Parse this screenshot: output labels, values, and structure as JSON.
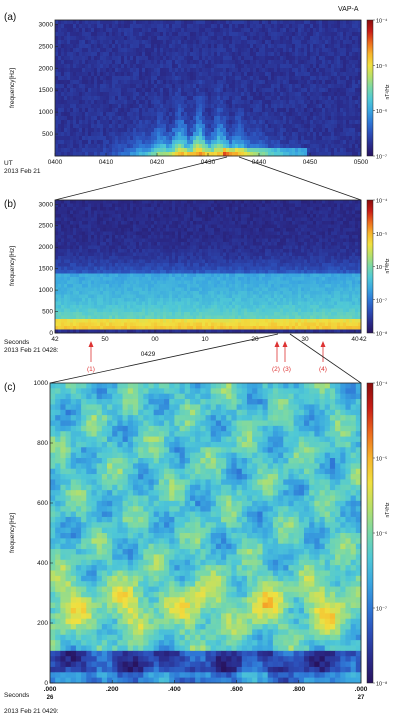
{
  "figure": {
    "instrument": "VAP-A",
    "cbar_units": "nT²/Hz"
  },
  "colors": {
    "colormap": [
      "#28135f",
      "#2a2c8c",
      "#2c4eb8",
      "#2f78d6",
      "#3aa6e0",
      "#4fc8d6",
      "#78d8a8",
      "#b6e06a",
      "#f0e040",
      "#f7b52c",
      "#ec6b1e",
      "#c81d16",
      "#8a0d0d"
    ],
    "annotation": "#dd3333"
  },
  "chart_data": [
    {
      "type": "heatmap",
      "panel_label": "(a)",
      "ylabel": "frequency[Hz]",
      "yticks": [
        500,
        1000,
        1500,
        2000,
        2500,
        3000
      ],
      "ylim": [
        0,
        3100
      ],
      "x_prefix": [
        "UT",
        "2013 Feb 21"
      ],
      "xticks": [
        "0400",
        "0410",
        "0420",
        "0430",
        "0440",
        "0450",
        "0500"
      ],
      "cbar": {
        "labels": [
          "10⁻⁴",
          "10⁻⁵",
          "10⁻⁶",
          "10⁻⁷"
        ],
        "log_range": [
          -7,
          -4
        ],
        "scale": "log"
      },
      "grid": false
    },
    {
      "type": "heatmap",
      "panel_label": "(b)",
      "ylabel": "frequency[Hz]",
      "yticks": [
        0,
        500,
        1000,
        1500,
        2000,
        2500,
        3000
      ],
      "ylim": [
        0,
        3100
      ],
      "x_prefix": [
        "Seconds",
        "2013 Feb 21 0428:"
      ],
      "xticks": [
        "42",
        "50",
        "00",
        "10",
        "20",
        "30",
        "40"
      ],
      "xtick_end": "42",
      "xtick_minute": "0429",
      "markers": [
        "(1)",
        "(2)",
        "(3)",
        "(4)"
      ],
      "cbar": {
        "labels": [
          "10⁻⁴",
          "10⁻⁵",
          "10⁻⁶",
          "10⁻⁷",
          "10⁻⁸"
        ],
        "log_range": [
          -8,
          -4
        ],
        "scale": "log"
      },
      "grid": false
    },
    {
      "type": "heatmap",
      "panel_label": "(c)",
      "ylabel": "frequency[Hz]",
      "yticks": [
        0,
        200,
        400,
        600,
        800,
        1000
      ],
      "ylim": [
        0,
        1000
      ],
      "x_prefix": [
        "Seconds",
        "2013 Feb 21 0429:"
      ],
      "xticks": [
        ".000",
        ".200",
        ".400",
        ".600",
        ".800",
        ".000"
      ],
      "xtick_sub": [
        "26",
        "27"
      ],
      "cbar": {
        "labels": [
          "10⁻⁴",
          "10⁻⁵",
          "10⁻⁶",
          "10⁻⁷",
          "10⁻⁸"
        ],
        "log_range": [
          -8,
          -4
        ],
        "scale": "log"
      },
      "grid": false
    }
  ]
}
